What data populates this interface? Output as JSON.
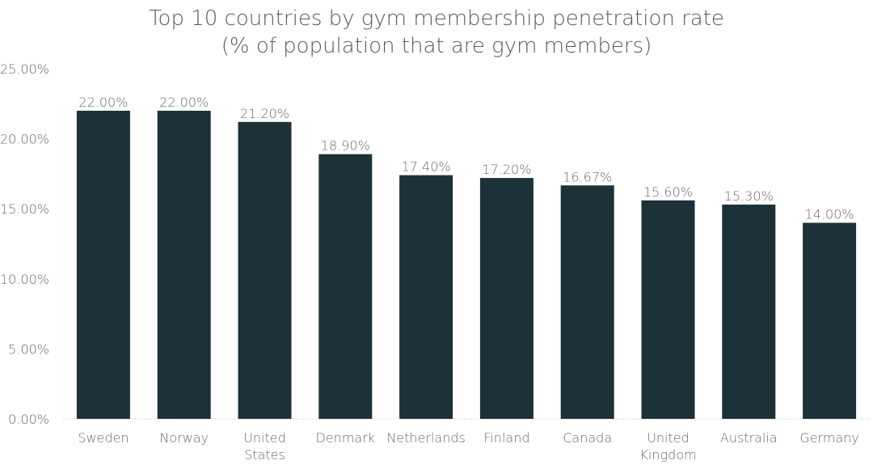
{
  "chart_data": {
    "type": "bar",
    "title": "Top 10 countries by gym membership penetration rate",
    "subtitle": "(% of population that are gym members)",
    "categories": [
      "Sweden",
      "Norway",
      "United States",
      "Denmark",
      "Netherlands",
      "Finland",
      "Canada",
      "United Kingdom",
      "Australia",
      "Germany"
    ],
    "category_lines": [
      [
        "Sweden"
      ],
      [
        "Norway"
      ],
      [
        "United",
        "States"
      ],
      [
        "Denmark"
      ],
      [
        "Netherlands"
      ],
      [
        "Finland"
      ],
      [
        "Canada"
      ],
      [
        "United",
        "Kingdom"
      ],
      [
        "Australia"
      ],
      [
        "Germany"
      ]
    ],
    "values": [
      22.0,
      22.0,
      21.2,
      18.9,
      17.4,
      17.2,
      16.67,
      15.6,
      15.3,
      14.0
    ],
    "data_labels": [
      "22.00%",
      "22.00%",
      "21.20%",
      "18.90%",
      "17.40%",
      "17.20%",
      "16.67%",
      "15.60%",
      "15.30%",
      "14.00%"
    ],
    "ylim": [
      0,
      25
    ],
    "yticks": [
      0,
      5,
      10,
      15,
      20,
      25
    ],
    "ytick_labels": [
      "0.00%",
      "5.00%",
      "10.00%",
      "15.00%",
      "20.00%",
      "25.00%"
    ],
    "xlabel": "",
    "ylabel": "",
    "grid": false,
    "legend": "none",
    "colors": {
      "bar": "#1c3238",
      "text": "#6b6b6b",
      "title": "#5a5a5a"
    }
  }
}
